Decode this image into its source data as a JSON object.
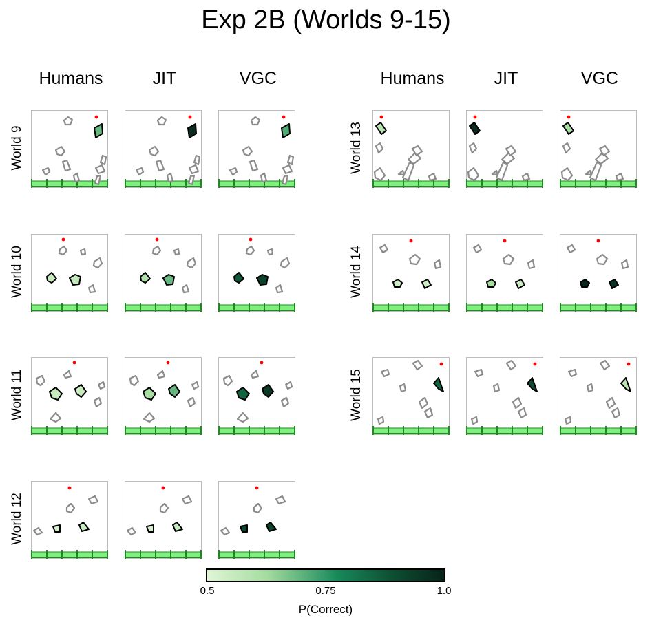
{
  "title": "Exp 2B (Worlds 9-15)",
  "column_headers": [
    "Humans",
    "JIT",
    "VGC"
  ],
  "rows": [
    {
      "label": "World 9"
    },
    {
      "label": "World 10"
    },
    {
      "label": "World 11"
    },
    {
      "label": "World 12"
    },
    {
      "label": "World 13"
    },
    {
      "label": "World 14"
    },
    {
      "label": "World 15"
    }
  ],
  "colorbar": {
    "label": "P(Correct)",
    "min": 0.5,
    "max": 1.0,
    "ticks": [
      "0.5",
      "0.75",
      "1.0"
    ],
    "tick_values": [
      0.5,
      0.75,
      1.0
    ],
    "colors": [
      "#dff5d6",
      "#a6dca0",
      "#17895a",
      "#0d4a30",
      "#08231a"
    ]
  },
  "colors": {
    "ball": "#ff0000",
    "obstacle_edge": "#8c8c8c",
    "ground_fill": "#7ff07f",
    "ground_edge": "#1f8a1f"
  },
  "chart_data": {
    "type": "heatmap",
    "title": "Exp 2B (Worlds 9-15)",
    "xlabel": "",
    "ylabel": "",
    "value_label": "P(Correct)",
    "value_range": [
      0.5,
      1.0
    ],
    "models": [
      "Humans",
      "JIT",
      "VGC"
    ],
    "worlds": [
      {
        "world": "World 9",
        "highlighted_objects": 1,
        "values": {
          "Humans": [
            0.68
          ],
          "JIT": [
            0.97
          ],
          "VGC": [
            0.7
          ]
        }
      },
      {
        "world": "World 10",
        "highlighted_objects": 2,
        "values": {
          "Humans": [
            0.55,
            0.56
          ],
          "JIT": [
            0.6,
            0.68
          ],
          "VGC": [
            0.85,
            0.9
          ]
        }
      },
      {
        "world": "World 11",
        "highlighted_objects": 2,
        "values": {
          "Humans": [
            0.55,
            0.55
          ],
          "JIT": [
            0.62,
            0.68
          ],
          "VGC": [
            0.82,
            0.93
          ]
        }
      },
      {
        "world": "World 12",
        "highlighted_objects": 2,
        "values": {
          "Humans": [
            0.53,
            0.55
          ],
          "JIT": [
            0.52,
            0.55
          ],
          "VGC": [
            0.88,
            0.88
          ]
        }
      },
      {
        "world": "World 13",
        "highlighted_objects": 1,
        "values": {
          "Humans": [
            0.58
          ],
          "JIT": [
            0.97
          ],
          "VGC": [
            0.62
          ]
        }
      },
      {
        "world": "World 14",
        "highlighted_objects": 2,
        "values": {
          "Humans": [
            0.54,
            0.54
          ],
          "JIT": [
            0.62,
            0.55
          ],
          "VGC": [
            0.99,
            0.95
          ]
        }
      },
      {
        "world": "World 15",
        "highlighted_objects": 1,
        "values": {
          "Humans": [
            0.82
          ],
          "JIT": [
            0.88
          ],
          "VGC": [
            0.58
          ]
        }
      }
    ]
  }
}
